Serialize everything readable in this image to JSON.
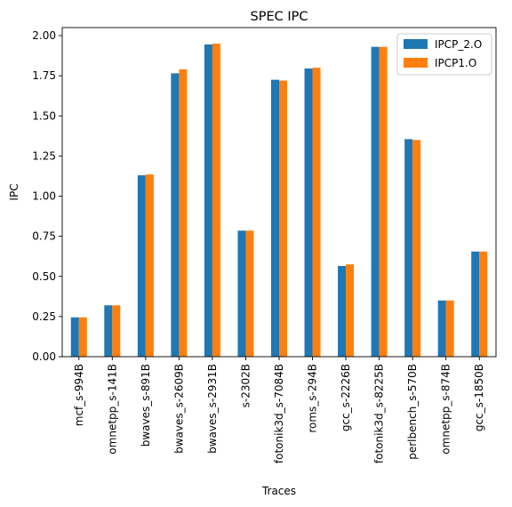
{
  "chart_data": {
    "type": "bar",
    "title": "SPEC IPC",
    "xlabel": "Traces",
    "ylabel": "IPC",
    "ylim": [
      0,
      2.05
    ],
    "yticks": [
      "0.00",
      "0.25",
      "0.50",
      "0.75",
      "1.00",
      "1.25",
      "1.50",
      "1.75",
      "2.00"
    ],
    "legend_position": "top-right",
    "grid": false,
    "categories": [
      "mcf_s-994B",
      "omnetpp_s-141B",
      "bwaves_s-891B",
      "bwaves_s-2609B",
      "bwaves_s-2931B",
      "s-2302B",
      "fotonik3d_s-7084B",
      "roms_s-294B",
      "gcc_s-2226B",
      "fotonik3d_s-8225B",
      "perlbench_s-570B",
      "omnetpp_s-874B",
      "gcc_s-1850B"
    ],
    "series": [
      {
        "name": "IPCP_2.O",
        "color": "#1f77b4",
        "values": [
          0.245,
          0.32,
          1.13,
          1.765,
          1.945,
          0.785,
          1.725,
          1.795,
          0.565,
          1.93,
          1.355,
          0.35,
          0.655
        ]
      },
      {
        "name": "IPCP1.O",
        "color": "#ff7f0e",
        "values": [
          0.245,
          0.32,
          1.135,
          1.79,
          1.95,
          0.785,
          1.72,
          1.8,
          0.575,
          1.93,
          1.35,
          0.35,
          0.655
        ]
      }
    ]
  }
}
